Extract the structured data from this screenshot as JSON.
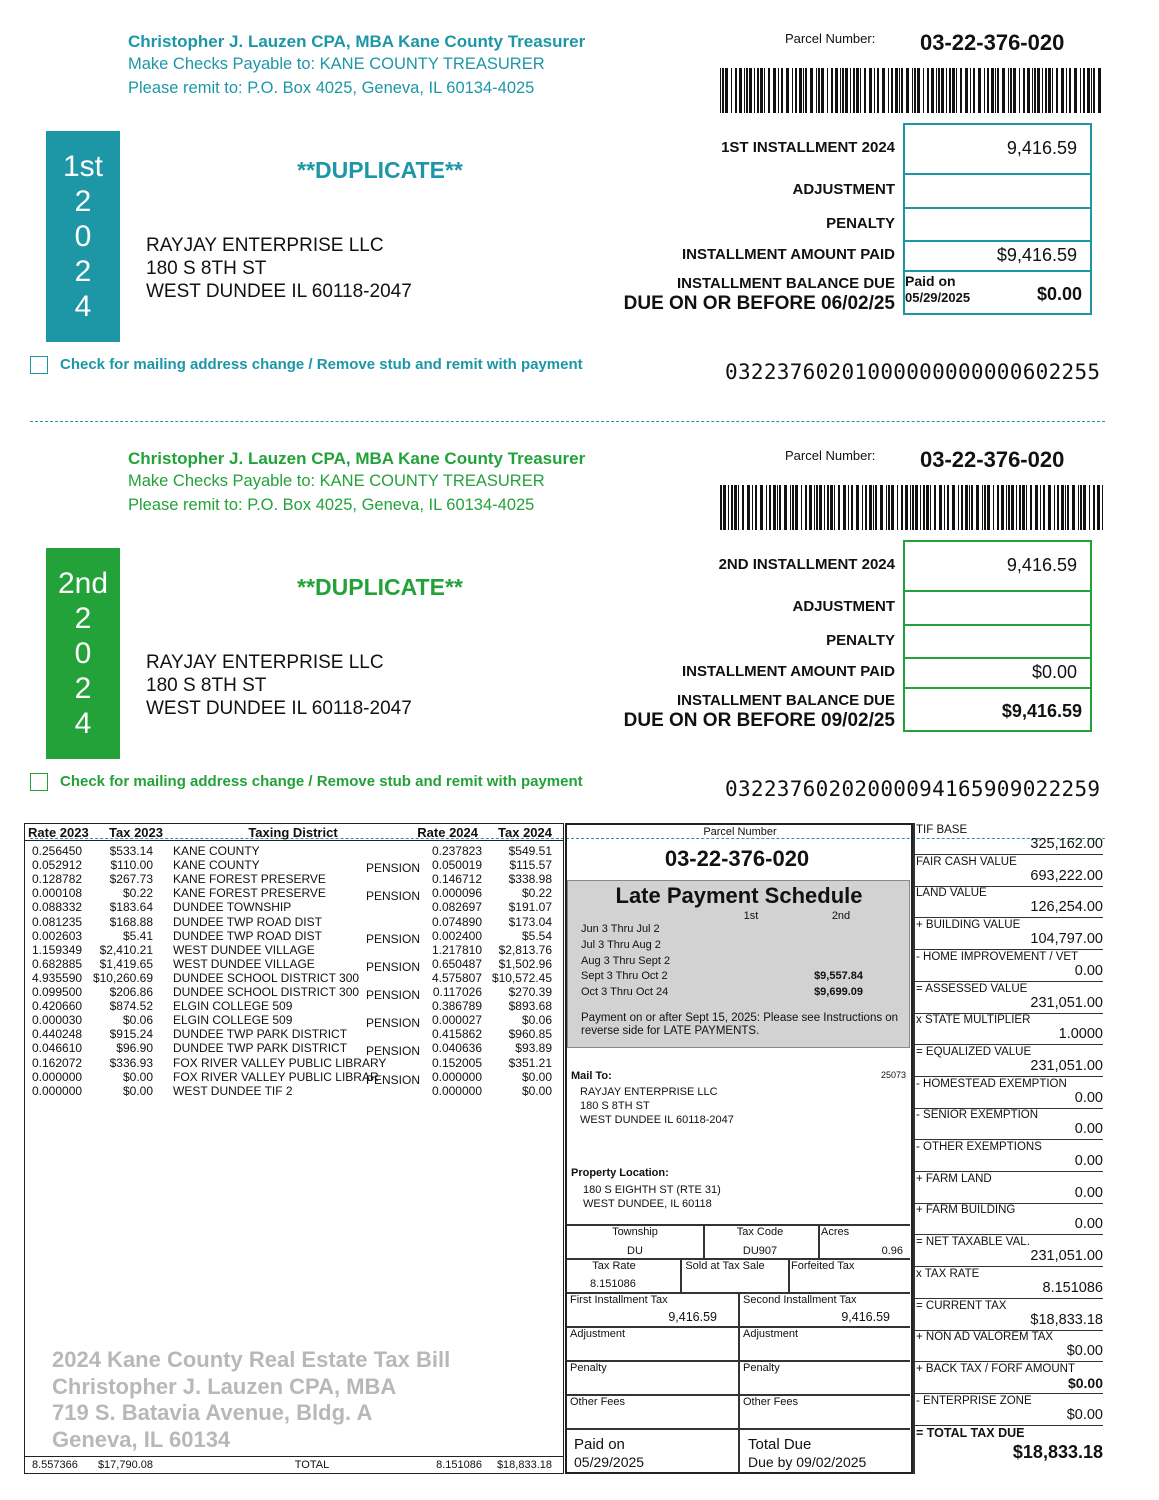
{
  "stubs": [
    {
      "color": "#1d97a6",
      "treasurer": "Christopher J. Lauzen CPA, MBA Kane County Treasurer",
      "payable": "Make Checks Payable to: KANE COUNTY TREASURER",
      "remit": "Please remit to: P.O. Box 4025, Geneva, IL 60134-4025",
      "parcel_label": "Parcel Number:",
      "parcel_number": "03-22-376-020",
      "band": [
        "1st",
        "2",
        "0",
        "2",
        "4"
      ],
      "duplicate": "**DUPLICATE**",
      "address": [
        "RAYJAY ENTERPRISE LLC",
        "180 S 8TH ST",
        "WEST DUNDEE IL  60118-2047"
      ],
      "lines": [
        {
          "label": "1ST INSTALLMENT 2024",
          "value": "9,416.59"
        },
        {
          "label": "ADJUSTMENT"
        },
        {
          "label": "PENALTY"
        },
        {
          "label": "INSTALLMENT AMOUNT PAID",
          "value": "$9,416.59"
        }
      ],
      "balance_label": "INSTALLMENT BALANCE DUE",
      "due_label": "DUE ON OR BEFORE 06/02/25",
      "paid_note": [
        "Paid on",
        "05/29/2025"
      ],
      "balance": "$0.00",
      "mailing_note": "Check for mailing address change / Remove stub and remit with payment",
      "scanline": "03223760201000000000000602255"
    },
    {
      "color": "#23a23a",
      "treasurer": "Christopher J. Lauzen CPA, MBA Kane County Treasurer",
      "payable": "Make Checks Payable to: KANE COUNTY TREASURER",
      "remit": "Please remit to: P.O. Box 4025, Geneva, IL 60134-4025",
      "parcel_label": "Parcel Number:",
      "parcel_number": "03-22-376-020",
      "band": [
        "2nd",
        "2",
        "0",
        "2",
        "4"
      ],
      "duplicate": "**DUPLICATE**",
      "address": [
        "RAYJAY ENTERPRISE LLC",
        "180 S 8TH ST",
        "WEST DUNDEE IL  60118-2047"
      ],
      "lines": [
        {
          "label": "2ND INSTALLMENT 2024",
          "value": "9,416.59"
        },
        {
          "label": "ADJUSTMENT"
        },
        {
          "label": "PENALTY"
        },
        {
          "label": "INSTALLMENT AMOUNT PAID",
          "value": "$0.00"
        }
      ],
      "balance_label": "INSTALLMENT BALANCE DUE",
      "due_label": "DUE ON OR BEFORE 09/02/25",
      "balance": "$9,416.59",
      "mailing_note": "Check for mailing address change / Remove stub and remit with payment",
      "scanline": "03223760202000094165909022259"
    }
  ],
  "districts": {
    "headers": [
      "Rate 2023",
      "Tax 2023",
      "Taxing District",
      "Rate 2024",
      "Tax 2024"
    ],
    "rows": [
      [
        "0.256450",
        "$533.14",
        "KANE COUNTY",
        "0.237823",
        "$549.51"
      ],
      [
        "0.052912",
        "$110.00",
        "KANE COUNTY",
        "0.050019",
        "$115.57",
        "PENSION"
      ],
      [
        "0.128782",
        "$267.73",
        "KANE FOREST PRESERVE",
        "0.146712",
        "$338.98"
      ],
      [
        "0.000108",
        "$0.22",
        "KANE FOREST PRESERVE",
        "0.000096",
        "$0.22",
        "PENSION"
      ],
      [
        "0.088332",
        "$183.64",
        "DUNDEE TOWNSHIP",
        "0.082697",
        "$191.07"
      ],
      [
        "0.081235",
        "$168.88",
        "DUNDEE TWP ROAD DIST",
        "0.074890",
        "$173.04"
      ],
      [
        "0.002603",
        "$5.41",
        "DUNDEE TWP ROAD DIST",
        "0.002400",
        "$5.54",
        "PENSION"
      ],
      [
        "1.159349",
        "$2,410.21",
        "WEST DUNDEE VILLAGE",
        "1.217810",
        "$2,813.76"
      ],
      [
        "0.682885",
        "$1,419.65",
        "WEST DUNDEE VILLAGE",
        "0.650487",
        "$1,502.96",
        "PENSION"
      ],
      [
        "4.935590",
        "$10,260.69",
        "DUNDEE SCHOOL DISTRICT 300",
        "4.575807",
        "$10,572.45"
      ],
      [
        "0.099500",
        "$206.86",
        "DUNDEE SCHOOL DISTRICT 300",
        "0.117026",
        "$270.39",
        "PENSION"
      ],
      [
        "0.420660",
        "$874.52",
        "ELGIN COLLEGE 509",
        "0.386789",
        "$893.68"
      ],
      [
        "0.000030",
        "$0.06",
        "ELGIN COLLEGE 509",
        "0.000027",
        "$0.06",
        "PENSION"
      ],
      [
        "0.440248",
        "$915.24",
        "DUNDEE TWP PARK DISTRICT",
        "0.415862",
        "$960.85"
      ],
      [
        "0.046610",
        "$96.90",
        "DUNDEE TWP PARK DISTRICT",
        "0.040636",
        "$93.89",
        "PENSION"
      ],
      [
        "0.162072",
        "$336.93",
        "FOX RIVER VALLEY PUBLIC LIBRARY",
        "0.152005",
        "$351.21"
      ],
      [
        "0.000000",
        "$0.00",
        "FOX RIVER VALLEY PUBLIC LIBRAR",
        "0.000000",
        "$0.00",
        "PENSION"
      ],
      [
        "0.000000",
        "$0.00",
        "WEST DUNDEE TIF 2",
        "0.000000",
        "$0.00"
      ]
    ],
    "total": [
      "8.557366",
      "$17,790.08",
      "TOTAL",
      "8.151086",
      "$18,833.18"
    ],
    "watermark": [
      "2024 Kane County Real Estate Tax Bill",
      "Christopher J. Lauzen CPA, MBA",
      "719 S. Batavia Avenue, Bldg. A",
      "Geneva, IL 60134"
    ]
  },
  "summary": {
    "parcel_label": "Parcel Number",
    "parcel_number": "03-22-376-020",
    "late_title": "Late Payment Schedule",
    "late_columns": [
      "1st",
      "2nd"
    ],
    "late_rows": [
      {
        "period": "Jun 3 Thru Jul 2"
      },
      {
        "period": "Jul 3 Thru Aug 2"
      },
      {
        "period": "Aug 3 Thru Sept 2"
      },
      {
        "period": "Sept 3 Thru Oct 2",
        "second": "$9,557.84"
      },
      {
        "period": "Oct 3 Thru Oct 24",
        "second": "$9,699.09"
      }
    ],
    "late_note": "Payment on or after Sept 15, 2025: Please see Instructions on reverse side for LATE PAYMENTS.",
    "mail_to_label": "Mail To:",
    "mail_code": "25073",
    "mail_to": [
      "RAYJAY ENTERPRISE LLC",
      "180 S 8TH ST",
      "WEST DUNDEE IL  60118-2047"
    ],
    "property_label": "Property Location:",
    "property": [
      "180 S EIGHTH ST (RTE 31)",
      "WEST DUNDEE, IL  60118"
    ],
    "township_label": "Township",
    "township": "DU",
    "tax_code_label": "Tax Code",
    "tax_code": "DU907",
    "acres_label": "Acres",
    "acres": "0.96",
    "tax_rate_label": "Tax Rate",
    "tax_rate": "8.151086",
    "sold_label": "Sold at Tax Sale",
    "forfeited_label": "Forfeited Tax",
    "first_tax_label": "First Installment Tax",
    "first_tax": "9,416.59",
    "second_tax_label": "Second Installment Tax",
    "second_tax": "9,416.59",
    "adjustment_labels": [
      "Adjustment",
      "Adjustment"
    ],
    "penalty_labels": [
      "Penalty",
      "Penalty"
    ],
    "fees_labels": [
      "Other Fees",
      "Other Fees"
    ],
    "paid_on": [
      "Paid on",
      "05/29/2025"
    ],
    "total_due": [
      "Total Due",
      "Due by 09/02/2025"
    ]
  },
  "valuation": [
    {
      "label": "TIF BASE",
      "value": "325,162.00"
    },
    {
      "label": "FAIR CASH VALUE",
      "value": "693,222.00"
    },
    {
      "label": "LAND VALUE",
      "value": "126,254.00"
    },
    {
      "label": "+ BUILDING VALUE",
      "value": "104,797.00"
    },
    {
      "label": "- HOME IMPROVEMENT / VET",
      "value": "0.00"
    },
    {
      "label": "= ASSESSED VALUE",
      "value": "231,051.00"
    },
    {
      "label": "x STATE MULTIPLIER",
      "value": "1.0000"
    },
    {
      "label": "= EQUALIZED VALUE",
      "value": "231,051.00"
    },
    {
      "label": "- HOMESTEAD EXEMPTION",
      "value": "0.00"
    },
    {
      "label": "- SENIOR EXEMPTION",
      "value": "0.00"
    },
    {
      "label": "- OTHER EXEMPTIONS",
      "value": "0.00"
    },
    {
      "label": "+ FARM LAND",
      "value": "0.00"
    },
    {
      "label": "+ FARM BUILDING",
      "value": "0.00"
    },
    {
      "label": "= NET TAXABLE VAL.",
      "value": "231,051.00"
    },
    {
      "label": "x TAX RATE",
      "value": "8.151086"
    },
    {
      "label": "= CURRENT TAX",
      "value": "$18,833.18"
    },
    {
      "label": "+ NON AD VALOREM TAX",
      "value": "$0.00"
    },
    {
      "label": "+ BACK TAX / FORF AMOUNT",
      "value": "$0.00"
    },
    {
      "label": "- ENTERPRISE ZONE",
      "value": "$0.00"
    },
    {
      "label": "= TOTAL TAX DUE",
      "value": "$18,833.18"
    }
  ]
}
